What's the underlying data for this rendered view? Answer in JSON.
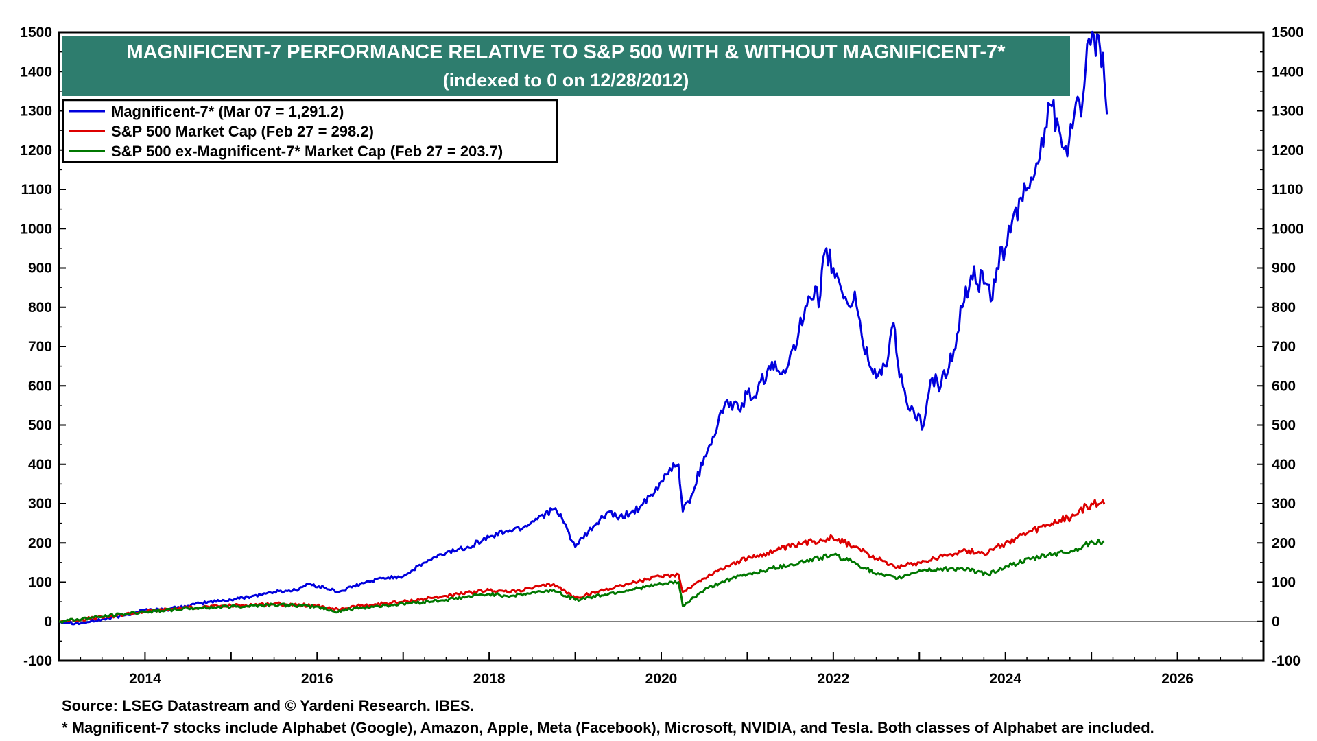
{
  "chart_data": {
    "type": "line",
    "title": "MAGNIFICENT-7 PERFORMANCE RELATIVE TO S&P 500 WITH & WITHOUT MAGNIFICENT-7*",
    "subtitle": "(indexed to 0 on 12/28/2012)",
    "ylim": [
      -100,
      1500
    ],
    "xlim": [
      2013.0,
      2027.0
    ],
    "y_ticks": [
      -100,
      0,
      100,
      200,
      300,
      400,
      500,
      600,
      700,
      800,
      900,
      1000,
      1100,
      1200,
      1300,
      1400,
      1500
    ],
    "x_ticks": [
      2014,
      2016,
      2018,
      2020,
      2022,
      2024,
      2026
    ],
    "zero_line": true,
    "grid": false,
    "legend_position": "top-left",
    "series": [
      {
        "name": "Magnificent-7* (Mar 07 = 1,291.2)",
        "color": "#0000dd",
        "points": [
          [
            2013.0,
            0
          ],
          [
            2013.25,
            -5
          ],
          [
            2013.5,
            5
          ],
          [
            2013.75,
            15
          ],
          [
            2014.0,
            30
          ],
          [
            2014.25,
            30
          ],
          [
            2014.5,
            40
          ],
          [
            2014.75,
            50
          ],
          [
            2015.0,
            55
          ],
          [
            2015.25,
            65
          ],
          [
            2015.5,
            75
          ],
          [
            2015.75,
            80
          ],
          [
            2015.9,
            95
          ],
          [
            2016.1,
            85
          ],
          [
            2016.25,
            75
          ],
          [
            2016.5,
            95
          ],
          [
            2016.75,
            110
          ],
          [
            2017.0,
            115
          ],
          [
            2017.25,
            150
          ],
          [
            2017.5,
            175
          ],
          [
            2017.75,
            190
          ],
          [
            2018.0,
            215
          ],
          [
            2018.2,
            230
          ],
          [
            2018.4,
            240
          ],
          [
            2018.6,
            270
          ],
          [
            2018.75,
            285
          ],
          [
            2018.85,
            260
          ],
          [
            2019.0,
            190
          ],
          [
            2019.25,
            250
          ],
          [
            2019.4,
            280
          ],
          [
            2019.5,
            260
          ],
          [
            2019.75,
            290
          ],
          [
            2019.9,
            320
          ],
          [
            2020.1,
            390
          ],
          [
            2020.2,
            400
          ],
          [
            2020.25,
            280
          ],
          [
            2020.35,
            320
          ],
          [
            2020.5,
            420
          ],
          [
            2020.6,
            470
          ],
          [
            2020.75,
            560
          ],
          [
            2020.9,
            540
          ],
          [
            2021.0,
            580
          ],
          [
            2021.1,
            570
          ],
          [
            2021.25,
            650
          ],
          [
            2021.4,
            630
          ],
          [
            2021.5,
            680
          ],
          [
            2021.6,
            740
          ],
          [
            2021.75,
            820
          ],
          [
            2021.85,
            830
          ],
          [
            2021.9,
            940
          ],
          [
            2022.0,
            900
          ],
          [
            2022.1,
            840
          ],
          [
            2022.2,
            800
          ],
          [
            2022.25,
            840
          ],
          [
            2022.35,
            700
          ],
          [
            2022.5,
            620
          ],
          [
            2022.6,
            650
          ],
          [
            2022.7,
            760
          ],
          [
            2022.75,
            660
          ],
          [
            2022.85,
            560
          ],
          [
            2022.95,
            520
          ],
          [
            2023.05,
            500
          ],
          [
            2023.15,
            620
          ],
          [
            2023.25,
            600
          ],
          [
            2023.4,
            690
          ],
          [
            2023.5,
            800
          ],
          [
            2023.6,
            880
          ],
          [
            2023.75,
            860
          ],
          [
            2023.85,
            820
          ],
          [
            2023.9,
            900
          ],
          [
            2024.0,
            950
          ],
          [
            2024.1,
            1040
          ],
          [
            2024.2,
            1070
          ],
          [
            2024.3,
            1130
          ],
          [
            2024.4,
            1180
          ],
          [
            2024.5,
            1320
          ],
          [
            2024.6,
            1280
          ],
          [
            2024.7,
            1210
          ],
          [
            2024.8,
            1290
          ],
          [
            2024.9,
            1330
          ],
          [
            2024.95,
            1470
          ],
          [
            2025.05,
            1440
          ],
          [
            2025.1,
            1460
          ],
          [
            2025.15,
            1380
          ],
          [
            2025.18,
            1291.2
          ]
        ]
      },
      {
        "name": "S&P 500 Market Cap (Feb 27 = 298.2)",
        "color": "#dd0000",
        "points": [
          [
            2013.0,
            0
          ],
          [
            2013.5,
            10
          ],
          [
            2014.0,
            25
          ],
          [
            2014.5,
            35
          ],
          [
            2015.0,
            40
          ],
          [
            2015.5,
            45
          ],
          [
            2016.0,
            40
          ],
          [
            2016.2,
            30
          ],
          [
            2016.5,
            40
          ],
          [
            2017.0,
            50
          ],
          [
            2017.5,
            65
          ],
          [
            2018.0,
            80
          ],
          [
            2018.25,
            75
          ],
          [
            2018.75,
            95
          ],
          [
            2019.0,
            60
          ],
          [
            2019.5,
            90
          ],
          [
            2020.0,
            115
          ],
          [
            2020.2,
            120
          ],
          [
            2020.25,
            75
          ],
          [
            2020.5,
            110
          ],
          [
            2020.75,
            140
          ],
          [
            2021.0,
            160
          ],
          [
            2021.5,
            190
          ],
          [
            2021.99,
            215
          ],
          [
            2022.25,
            190
          ],
          [
            2022.5,
            160
          ],
          [
            2022.75,
            140
          ],
          [
            2023.0,
            150
          ],
          [
            2023.5,
            180
          ],
          [
            2023.8,
            175
          ],
          [
            2024.0,
            200
          ],
          [
            2024.5,
            245
          ],
          [
            2024.8,
            270
          ],
          [
            2025.0,
            300
          ],
          [
            2025.1,
            300
          ],
          [
            2025.15,
            298.2
          ]
        ]
      },
      {
        "name": "S&P 500 ex-Magnificent-7* Market Cap (Feb 27 = 203.7)",
        "color": "#007700",
        "points": [
          [
            2013.0,
            0
          ],
          [
            2013.5,
            12
          ],
          [
            2014.0,
            25
          ],
          [
            2014.5,
            33
          ],
          [
            2015.0,
            38
          ],
          [
            2015.5,
            43
          ],
          [
            2016.0,
            38
          ],
          [
            2016.2,
            25
          ],
          [
            2016.5,
            35
          ],
          [
            2017.0,
            45
          ],
          [
            2017.5,
            55
          ],
          [
            2018.0,
            70
          ],
          [
            2018.25,
            65
          ],
          [
            2018.75,
            80
          ],
          [
            2019.0,
            55
          ],
          [
            2019.5,
            75
          ],
          [
            2020.0,
            95
          ],
          [
            2020.2,
            100
          ],
          [
            2020.25,
            40
          ],
          [
            2020.5,
            80
          ],
          [
            2020.75,
            105
          ],
          [
            2021.0,
            120
          ],
          [
            2021.5,
            145
          ],
          [
            2021.99,
            170
          ],
          [
            2022.25,
            150
          ],
          [
            2022.5,
            120
          ],
          [
            2022.75,
            110
          ],
          [
            2023.0,
            130
          ],
          [
            2023.5,
            135
          ],
          [
            2023.8,
            120
          ],
          [
            2024.0,
            140
          ],
          [
            2024.5,
            170
          ],
          [
            2024.8,
            180
          ],
          [
            2025.0,
            205
          ],
          [
            2025.1,
            200
          ],
          [
            2025.15,
            203.7
          ]
        ]
      }
    ]
  },
  "footer": {
    "source": "Source: LSEG Datastream and © Yardeni Research. IBES.",
    "note": "* Magnificent-7 stocks include Alphabet (Google), Amazon, Apple, Meta (Facebook), Microsoft, NVIDIA, and Tesla. Both classes of Alphabet are included."
  },
  "colors": {
    "title_band": "#2e7d6e",
    "title_text": "#ffffff",
    "axis": "#000000"
  }
}
